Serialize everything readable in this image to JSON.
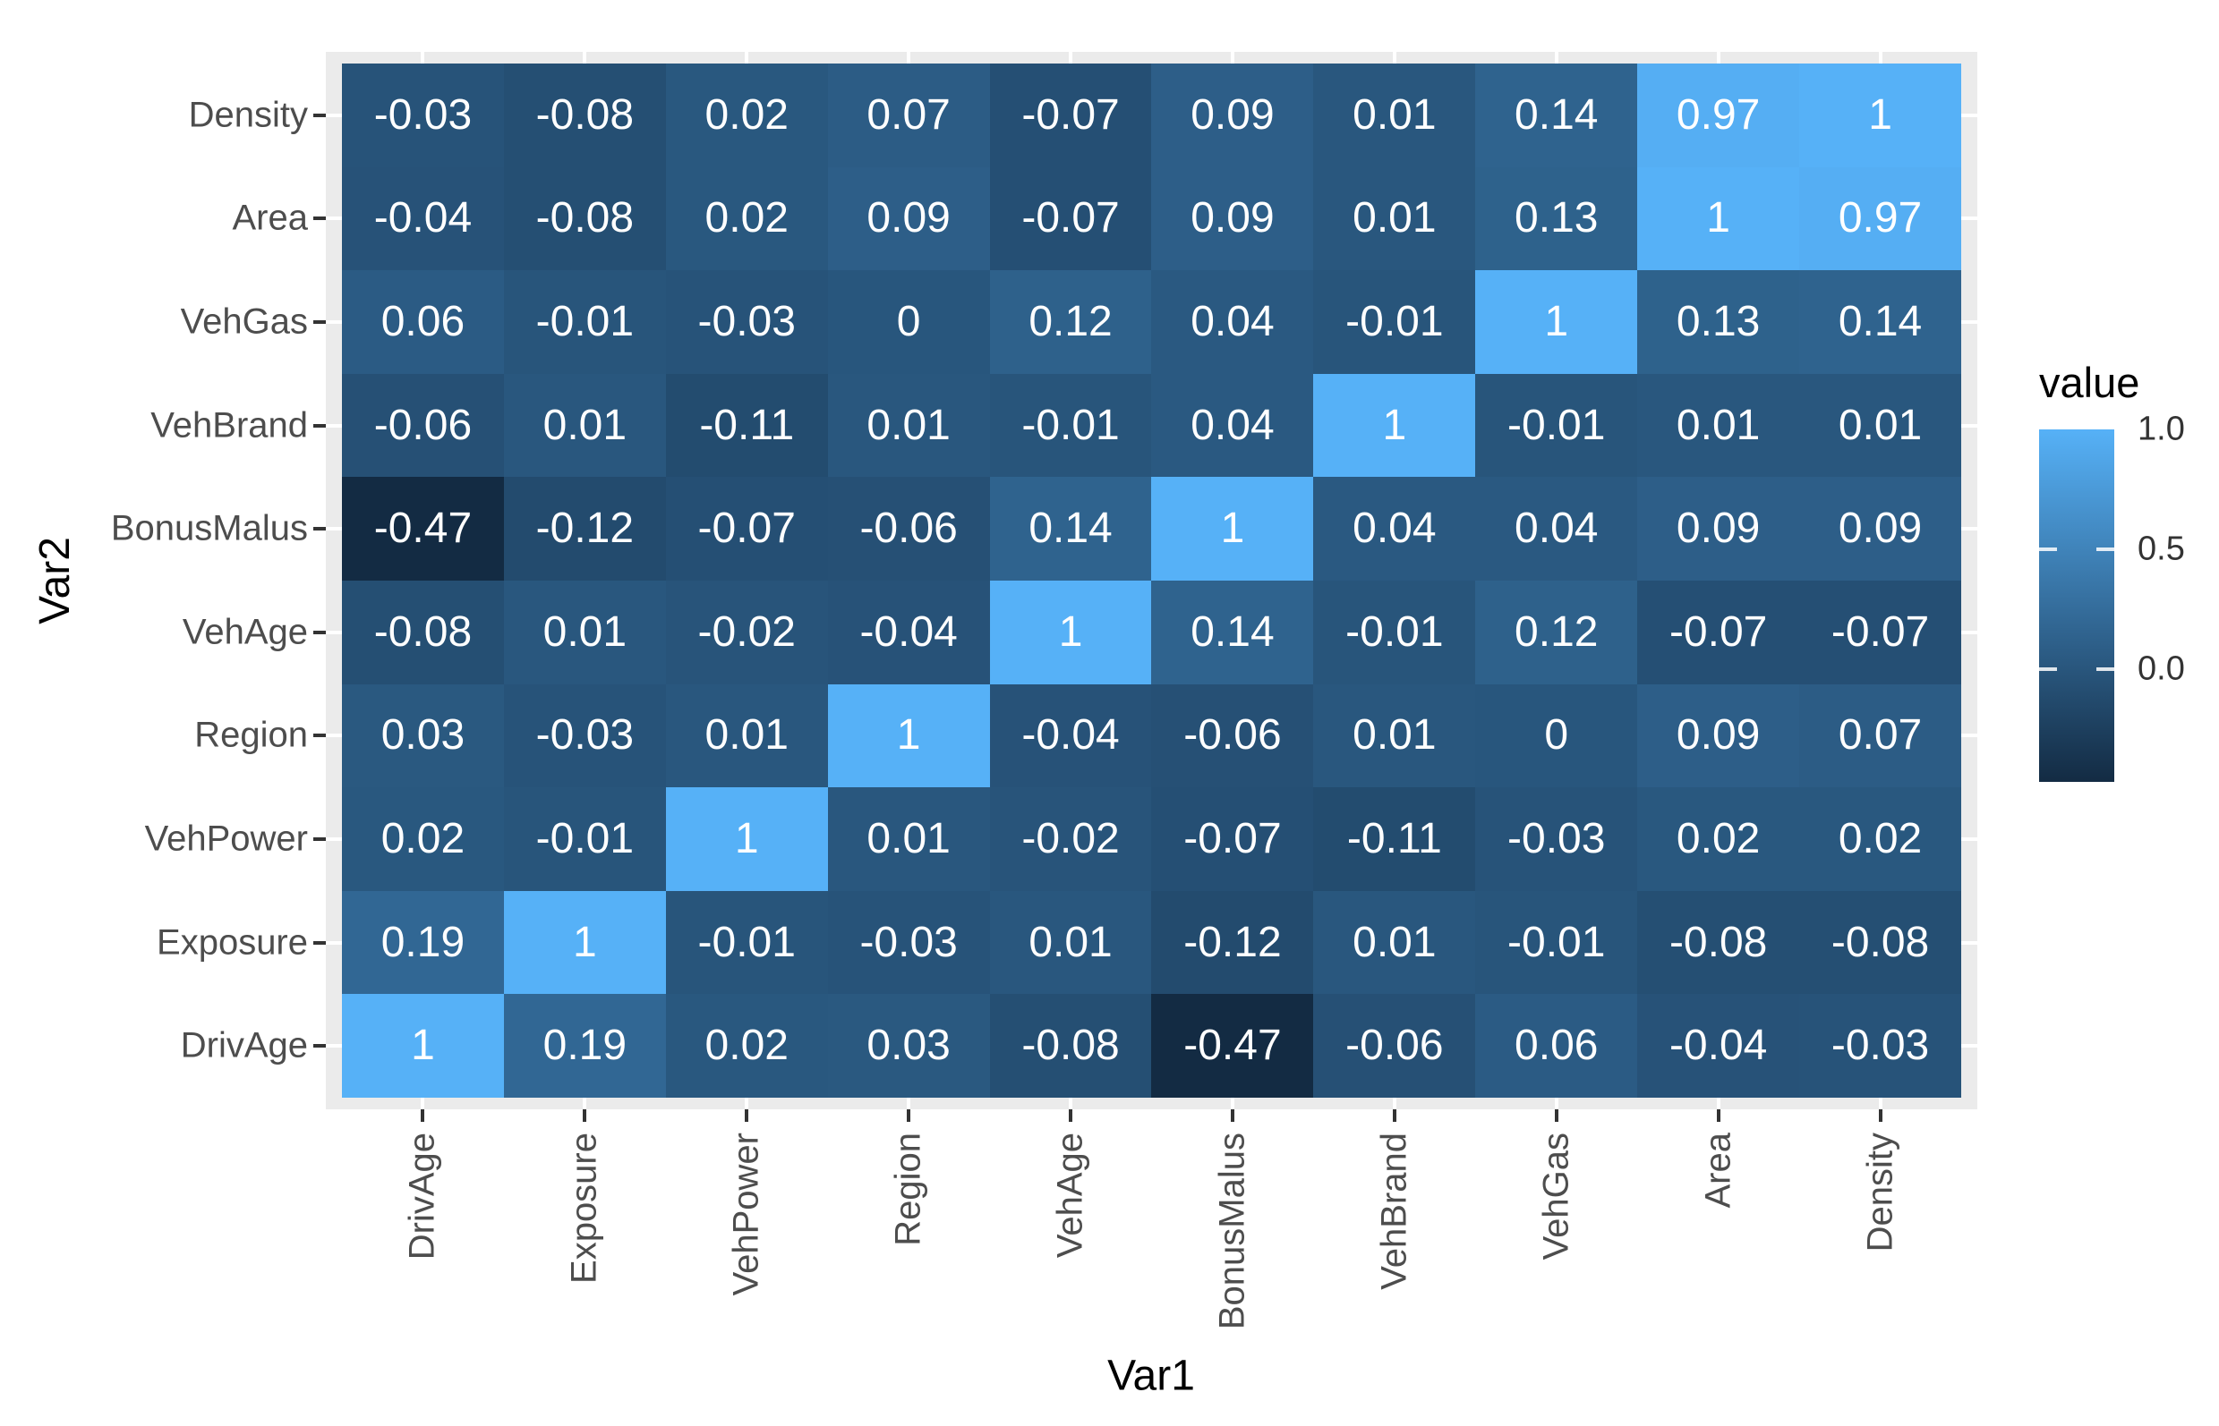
{
  "chart_data": {
    "type": "heatmap",
    "title": "",
    "xlabel": "Var1",
    "ylabel": "Var2",
    "x_categories": [
      "DrivAge",
      "Exposure",
      "VehPower",
      "Region",
      "VehAge",
      "BonusMalus",
      "VehBrand",
      "VehGas",
      "Area",
      "Density"
    ],
    "y_categories_top_to_bottom": [
      "Density",
      "Area",
      "VehGas",
      "VehBrand",
      "BonusMalus",
      "VehAge",
      "Region",
      "VehPower",
      "Exposure",
      "DrivAge"
    ],
    "matrix_rows_top_to_bottom": [
      [
        -0.03,
        -0.08,
        0.02,
        0.07,
        -0.07,
        0.09,
        0.01,
        0.14,
        0.97,
        1
      ],
      [
        -0.04,
        -0.08,
        0.02,
        0.09,
        -0.07,
        0.09,
        0.01,
        0.13,
        1,
        0.97
      ],
      [
        0.06,
        -0.01,
        -0.03,
        0,
        0.12,
        0.04,
        -0.01,
        1,
        0.13,
        0.14
      ],
      [
        -0.06,
        0.01,
        -0.11,
        0.01,
        -0.01,
        0.04,
        1,
        -0.01,
        0.01,
        0.01
      ],
      [
        -0.47,
        -0.12,
        -0.07,
        -0.06,
        0.14,
        1,
        0.04,
        0.04,
        0.09,
        0.09
      ],
      [
        -0.08,
        0.01,
        -0.02,
        -0.04,
        1,
        0.14,
        -0.01,
        0.12,
        -0.07,
        -0.07
      ],
      [
        0.03,
        -0.03,
        0.01,
        1,
        -0.04,
        -0.06,
        0.01,
        0,
        0.09,
        0.07
      ],
      [
        0.02,
        -0.01,
        1,
        0.01,
        -0.02,
        -0.07,
        -0.11,
        -0.03,
        0.02,
        0.02
      ],
      [
        0.19,
        1,
        -0.01,
        -0.03,
        0.01,
        -0.12,
        0.01,
        -0.01,
        -0.08,
        -0.08
      ],
      [
        1,
        0.19,
        0.02,
        0.03,
        -0.08,
        -0.47,
        -0.06,
        0.06,
        -0.04,
        -0.03
      ]
    ],
    "color_scale": {
      "low": "#132B43",
      "high": "#56B1F7",
      "domain": [
        -0.47,
        1
      ]
    },
    "legend_position": "right",
    "grid": "white major gridlines visible in panel margins"
  },
  "axes": {
    "x_title": "Var1",
    "y_title": "Var2"
  },
  "legend": {
    "title": "value",
    "ticks": [
      {
        "label": "1.0",
        "value": 1,
        "mark": false
      },
      {
        "label": "0.5",
        "value": 0.5,
        "mark": true
      },
      {
        "label": "0.0",
        "value": 0,
        "mark": true
      }
    ]
  },
  "colors": {
    "panel_background": "#EBEBEB",
    "axis_text": "#4D4D4D",
    "axis_title": "#000000",
    "cell_text": "#FFFFFF",
    "tick_mark": "#333333",
    "legend_text": "#333333",
    "gridline": "#FFFFFF"
  }
}
